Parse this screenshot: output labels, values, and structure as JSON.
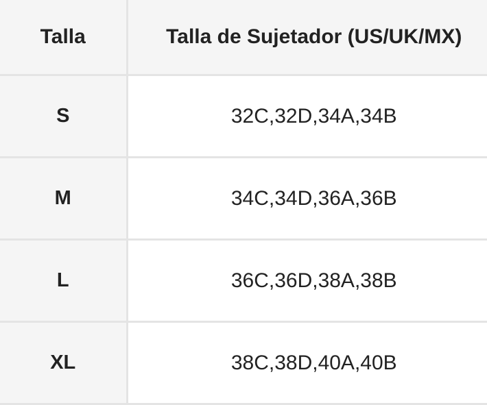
{
  "table": {
    "headers": [
      "Talla",
      "Talla de Sujetador (US/UK/MX)"
    ],
    "rows": [
      {
        "size": "S",
        "bra": "32C,32D,34A,34B"
      },
      {
        "size": "M",
        "bra": "34C,34D,36A,36B"
      },
      {
        "size": "L",
        "bra": "36C,36D,38A,38B"
      },
      {
        "size": "XL",
        "bra": "38C,38D,40A,40B"
      }
    ]
  }
}
